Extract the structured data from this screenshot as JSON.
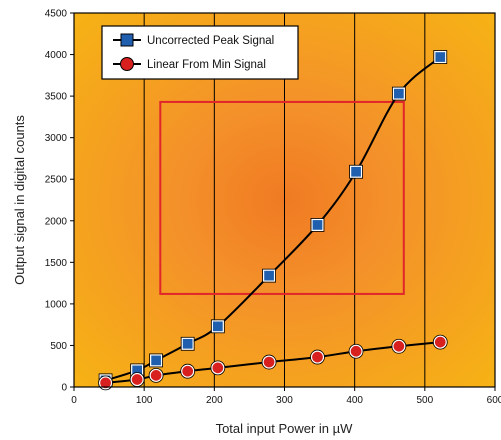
{
  "chart_data": {
    "type": "line",
    "title": "",
    "xlabel": "Total input Power in µW",
    "ylabel": "Output signal in digital counts",
    "xlim": [
      0,
      600
    ],
    "ylim": [
      0,
      4500
    ],
    "x_ticks": [
      "0",
      "100",
      "200",
      "300",
      "400",
      "500",
      "600"
    ],
    "y_ticks": [
      "0",
      "500",
      "1000",
      "1500",
      "2000",
      "2500",
      "3000",
      "3500",
      "4000",
      "4500"
    ],
    "grid": "vertical lines at 100, 200, 300, 400, 500",
    "legend_position": "top-left",
    "background": "radial gradient, orange center to yellow edges",
    "colors": {
      "bg_center": "#f07a22",
      "bg_edge": "#f6b414",
      "series1_fill": "#1f5fae",
      "series2_fill": "#d8201e",
      "line": "#000000",
      "annotation_box": "#e0252b"
    },
    "series": [
      {
        "name": "Uncorrected Peak Signal",
        "marker": "square",
        "x": [
          45,
          90,
          117,
          162,
          205,
          278,
          347,
          402,
          463,
          522
        ],
        "y": [
          80,
          200,
          320,
          520,
          730,
          1340,
          1950,
          2590,
          3530,
          3970
        ]
      },
      {
        "name": "Linear From Min Signal",
        "marker": "circle",
        "x": [
          45,
          90,
          117,
          162,
          205,
          278,
          347,
          402,
          463,
          522
        ],
        "y": [
          50,
          90,
          140,
          190,
          230,
          300,
          360,
          430,
          490,
          540
        ]
      }
    ],
    "annotations": [
      {
        "type": "rectangle",
        "x_range": [
          123,
          470
        ],
        "y_range": [
          1120,
          3430
        ],
        "color": "#e0252b"
      }
    ]
  }
}
